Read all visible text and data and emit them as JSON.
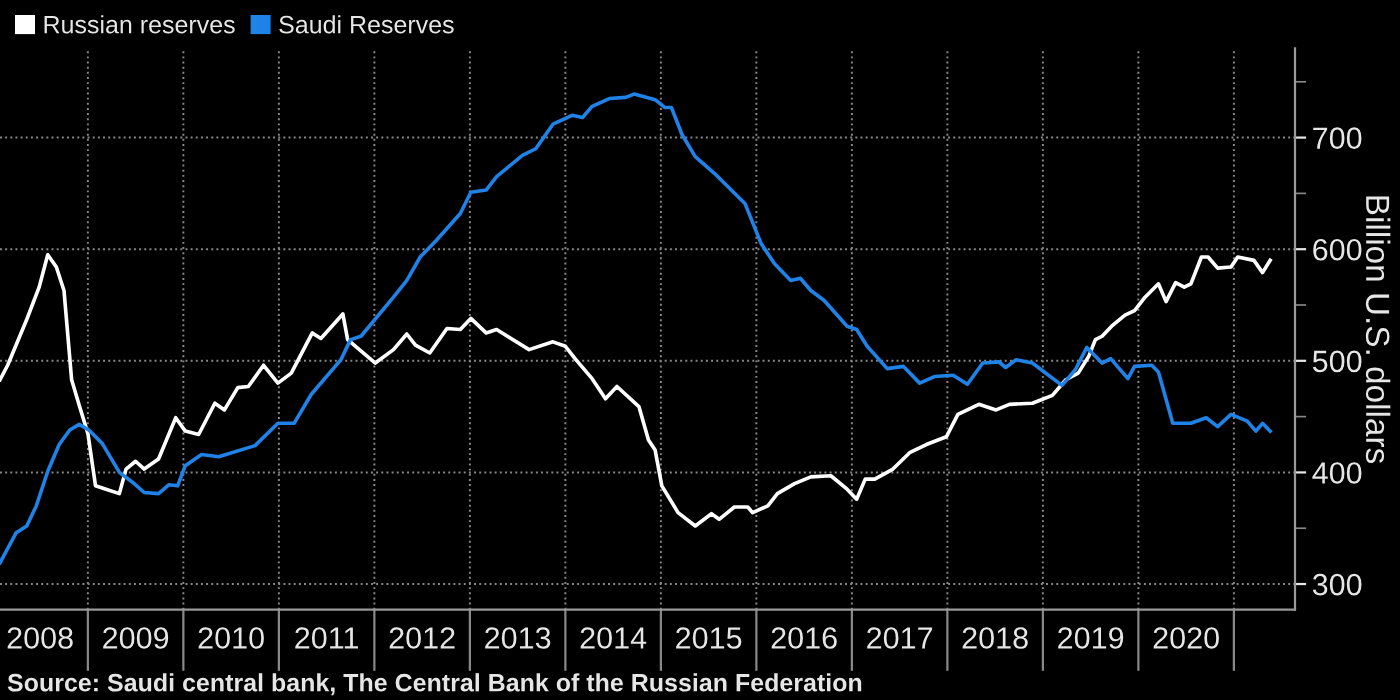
{
  "chart_data": {
    "type": "line",
    "ylabel": "Billion U.S. dollars",
    "annotations": [
      "Source: Saudi central bank, The Central Bank of the Russian Federation"
    ],
    "xlim": [
      2008.08,
      2021.64
    ],
    "ylim": [
      277,
      780
    ],
    "xticks": [
      {
        "value": 2008.5,
        "label": "2008"
      },
      {
        "value": 2009,
        "label": null
      },
      {
        "value": 2009.5,
        "label": "2009"
      },
      {
        "value": 2010,
        "label": null
      },
      {
        "value": 2010.5,
        "label": "2010"
      },
      {
        "value": 2011,
        "label": null
      },
      {
        "value": 2011.5,
        "label": "2011"
      },
      {
        "value": 2012,
        "label": null
      },
      {
        "value": 2012.5,
        "label": "2012"
      },
      {
        "value": 2013,
        "label": null
      },
      {
        "value": 2013.5,
        "label": "2013"
      },
      {
        "value": 2014,
        "label": null
      },
      {
        "value": 2014.5,
        "label": "2014"
      },
      {
        "value": 2015,
        "label": null
      },
      {
        "value": 2015.5,
        "label": "2015"
      },
      {
        "value": 2016,
        "label": null
      },
      {
        "value": 2016.5,
        "label": "2016"
      },
      {
        "value": 2017,
        "label": null
      },
      {
        "value": 2017.5,
        "label": "2017"
      },
      {
        "value": 2018,
        "label": null
      },
      {
        "value": 2018.5,
        "label": "2018"
      },
      {
        "value": 2019,
        "label": null
      },
      {
        "value": 2019.5,
        "label": "2019"
      },
      {
        "value": 2020,
        "label": null
      },
      {
        "value": 2020.5,
        "label": "2020"
      },
      {
        "value": 2021,
        "label": null
      }
    ],
    "yticks": [
      300,
      {
        "value": 350,
        "label": null
      },
      400,
      {
        "value": 450,
        "label": null
      },
      500,
      {
        "value": 550,
        "label": null
      },
      600,
      {
        "value": 650,
        "label": null
      },
      700,
      {
        "value": 750,
        "label": null
      }
    ],
    "grid": true,
    "legend": "top left",
    "line_style": "solid",
    "marker": "none",
    "series": [
      {
        "name": "Russian reserves",
        "color": "#ffffff",
        "x": [
          2008.08,
          2008.16,
          2008.36,
          2008.49,
          2008.58,
          2008.67,
          2008.75,
          2008.83,
          2008.91,
          2009.0,
          2009.08,
          2009.19,
          2009.33,
          2009.4,
          2009.5,
          2009.59,
          2009.74,
          2009.92,
          2010.02,
          2010.16,
          2010.33,
          2010.43,
          2010.57,
          2010.68,
          2010.84,
          2010.99,
          2011.13,
          2011.35,
          2011.44,
          2011.67,
          2011.72,
          2012.01,
          2012.2,
          2012.34,
          2012.43,
          2012.58,
          2012.76,
          2012.9,
          2013.01,
          2013.17,
          2013.28,
          2013.62,
          2013.87,
          2014.0,
          2014.11,
          2014.28,
          2014.42,
          2014.54,
          2014.77,
          2014.87,
          2014.94,
          2015.01,
          2015.18,
          2015.36,
          2015.53,
          2015.61,
          2015.77,
          2015.91,
          2015.96,
          2016.12,
          2016.22,
          2016.4,
          2016.57,
          2016.78,
          2016.95,
          2017.05,
          2017.14,
          2017.24,
          2017.43,
          2017.61,
          2017.78,
          2017.99,
          2018.11,
          2018.33,
          2018.51,
          2018.65,
          2018.89,
          2019.1,
          2019.24,
          2019.37,
          2019.48,
          2019.55,
          2019.62,
          2019.72,
          2019.86,
          2019.96,
          2020.07,
          2020.21,
          2020.29,
          2020.39,
          2020.48,
          2020.55,
          2020.66,
          2020.73,
          2020.83,
          2020.97,
          2021.04,
          2021.21,
          2021.3,
          2021.38
        ],
        "values": [
          483,
          496,
          537,
          566,
          595,
          584,
          563,
          483,
          460,
          435,
          388,
          385,
          381,
          403,
          410,
          403,
          412,
          449,
          437,
          434,
          462,
          456,
          476,
          477,
          496,
          480,
          489,
          525,
          520,
          542,
          519,
          498,
          510,
          524,
          514,
          507,
          529,
          528,
          538,
          525,
          528,
          510,
          517,
          513,
          501,
          484,
          466,
          477,
          459,
          429,
          420,
          388,
          364,
          352,
          363,
          358,
          369,
          369,
          364,
          370,
          381,
          390,
          396,
          397,
          385,
          376,
          394,
          394,
          403,
          418,
          425,
          432,
          452,
          461,
          456,
          461,
          462,
          469,
          483,
          489,
          504,
          519,
          522,
          531,
          541,
          545,
          557,
          569,
          553,
          570,
          566,
          569,
          593,
          593,
          583,
          584,
          593,
          590,
          579,
          590
        ]
      },
      {
        "name": "Saudi Reserves",
        "color": "#1f82e6",
        "x": [
          2008.08,
          2008.25,
          2008.36,
          2008.46,
          2008.58,
          2008.7,
          2008.81,
          2008.91,
          2009.01,
          2009.15,
          2009.33,
          2009.47,
          2009.59,
          2009.74,
          2009.85,
          2009.94,
          2010.02,
          2010.19,
          2010.37,
          2010.75,
          2010.99,
          2011.16,
          2011.34,
          2011.65,
          2011.75,
          2011.86,
          2012.2,
          2012.34,
          2012.48,
          2012.65,
          2012.9,
          2013.01,
          2013.17,
          2013.28,
          2013.55,
          2013.69,
          2013.87,
          2014.07,
          2014.18,
          2014.28,
          2014.46,
          2014.63,
          2014.72,
          2014.94,
          2015.04,
          2015.11,
          2015.22,
          2015.36,
          2015.56,
          2015.88,
          2016.05,
          2016.19,
          2016.36,
          2016.46,
          2016.57,
          2016.71,
          2016.95,
          2017.05,
          2017.16,
          2017.37,
          2017.54,
          2017.71,
          2017.87,
          2018.06,
          2018.21,
          2018.37,
          2018.54,
          2018.61,
          2018.72,
          2018.89,
          2019.2,
          2019.34,
          2019.46,
          2019.62,
          2019.71,
          2019.89,
          2019.96,
          2020.14,
          2020.21,
          2020.36,
          2020.55,
          2020.71,
          2020.83,
          2020.97,
          2021.14,
          2021.23,
          2021.3,
          2021.38
        ],
        "values": [
          319,
          346,
          352,
          370,
          401,
          425,
          438,
          443,
          438,
          426,
          400,
          391,
          382,
          381,
          389,
          388,
          406,
          416,
          414,
          424,
          444,
          444,
          470,
          501,
          519,
          522,
          557,
          572,
          593,
          608,
          632,
          651,
          653,
          665,
          684,
          690,
          712,
          720,
          718,
          728,
          735,
          736,
          739,
          734,
          727,
          727,
          703,
          683,
          668,
          641,
          605,
          587,
          572,
          574,
          563,
          554,
          531,
          528,
          513,
          493,
          495,
          480,
          486,
          487,
          479,
          498,
          499,
          494,
          501,
          498,
          478,
          492,
          512,
          498,
          502,
          484,
          495,
          496,
          490,
          444,
          444,
          449,
          441,
          452,
          446,
          437,
          444,
          437
        ]
      }
    ]
  }
}
